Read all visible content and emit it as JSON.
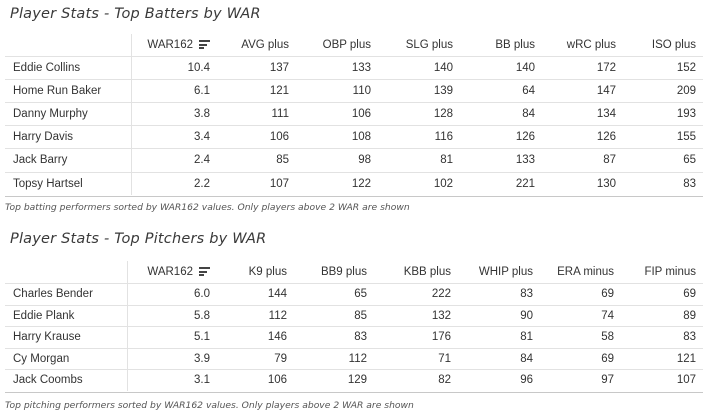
{
  "batting": {
    "title": "Player Stats - Top Batters by WAR",
    "columns": [
      "WAR162",
      "AVG plus",
      "OBP plus",
      "SLG plus",
      "BB plus",
      "wRC plus",
      "ISO plus"
    ],
    "rows": [
      {
        "name": "Eddie Collins",
        "values": [
          "10.4",
          "137",
          "133",
          "140",
          "140",
          "172",
          "152"
        ]
      },
      {
        "name": "Home Run Baker",
        "values": [
          "6.1",
          "121",
          "110",
          "139",
          "64",
          "147",
          "209"
        ]
      },
      {
        "name": "Danny Murphy",
        "values": [
          "3.8",
          "111",
          "106",
          "128",
          "84",
          "134",
          "193"
        ]
      },
      {
        "name": "Harry Davis",
        "values": [
          "3.4",
          "106",
          "108",
          "116",
          "126",
          "126",
          "155"
        ]
      },
      {
        "name": "Jack Barry",
        "values": [
          "2.4",
          "85",
          "98",
          "81",
          "133",
          "87",
          "65"
        ]
      },
      {
        "name": "Topsy Hartsel",
        "values": [
          "2.2",
          "107",
          "122",
          "102",
          "221",
          "130",
          "83"
        ]
      }
    ],
    "footnote": "Top batting performers sorted by WAR162 values. Only players above 2 WAR are shown"
  },
  "pitching": {
    "title": "Player Stats - Top Pitchers by WAR",
    "columns": [
      "WAR162",
      "K9 plus",
      "BB9 plus",
      "KBB plus",
      "WHIP plus",
      "ERA minus",
      "FIP minus"
    ],
    "rows": [
      {
        "name": "Charles Bender",
        "values": [
          "6.0",
          "144",
          "65",
          "222",
          "83",
          "69",
          "69"
        ]
      },
      {
        "name": "Eddie Plank",
        "values": [
          "5.8",
          "112",
          "85",
          "132",
          "90",
          "74",
          "89"
        ]
      },
      {
        "name": "Harry Krause",
        "values": [
          "5.1",
          "146",
          "83",
          "176",
          "81",
          "58",
          "83"
        ]
      },
      {
        "name": "Cy Morgan",
        "values": [
          "3.9",
          "79",
          "112",
          "71",
          "84",
          "69",
          "121"
        ]
      },
      {
        "name": "Jack Coombs",
        "values": [
          "3.1",
          "106",
          "129",
          "82",
          "96",
          "97",
          "107"
        ]
      }
    ],
    "footnote": "Top pitching performers sorted by WAR162 values. Only players above 2 WAR are shown"
  },
  "icons": {
    "sort": "sort-descending-icon"
  }
}
